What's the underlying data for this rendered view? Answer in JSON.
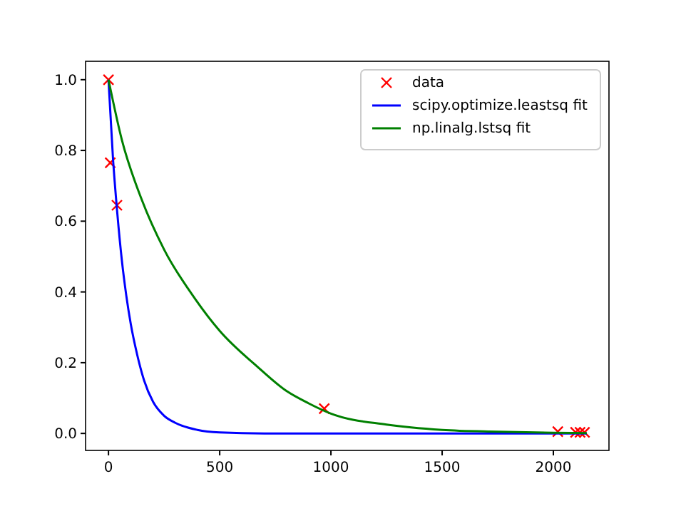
{
  "chart_data": {
    "type": "line",
    "xlim": [
      -103,
      2250
    ],
    "ylim": [
      -0.048,
      1.052
    ],
    "xticks": [
      0,
      500,
      1000,
      1500,
      2000
    ],
    "yticks": [
      {
        "value": 0,
        "label": "0.0"
      },
      {
        "value": 0.2,
        "label": "0.2"
      },
      {
        "value": 0.4,
        "label": "0.4"
      },
      {
        "value": 0.6,
        "label": "0.6"
      },
      {
        "value": 0.8,
        "label": "0.8"
      },
      {
        "value": 1,
        "label": "1.0"
      }
    ],
    "legend": "top right",
    "grid": false,
    "series": [
      {
        "name": "data",
        "type": "scatter",
        "marker": "cross",
        "color": "#ff0000",
        "x": [
          0,
          8,
          38,
          970,
          2020,
          2100,
          2120,
          2140
        ],
        "values": [
          1.0,
          0.765,
          0.645,
          0.07,
          0.005,
          0.003,
          0.003,
          0.003
        ]
      },
      {
        "name": "scipy.optimize.leastsq fit",
        "type": "line",
        "color": "#0000ff",
        "x": [
          0,
          20,
          40,
          60,
          80,
          100,
          130,
          160,
          200,
          250,
          300,
          400,
          500,
          700,
          2150
        ],
        "values": [
          1,
          0.78,
          0.62,
          0.49,
          0.39,
          0.31,
          0.22,
          0.15,
          0.09,
          0.05,
          0.03,
          0.01,
          0.003,
          0,
          0
        ]
      },
      {
        "name": "np.linalg.lstsq fit",
        "type": "line",
        "color": "#008000",
        "x": [
          0,
          60,
          150,
          250,
          390,
          500,
          667,
          800,
          900,
          1000,
          1250,
          1500,
          1750,
          2000,
          2150
        ],
        "values": [
          1,
          0.83,
          0.66,
          0.52,
          0.38,
          0.29,
          0.19,
          0.12,
          0.085,
          0.056,
          0.025,
          0.01,
          0.005,
          0.002,
          0.001
        ]
      }
    ]
  }
}
